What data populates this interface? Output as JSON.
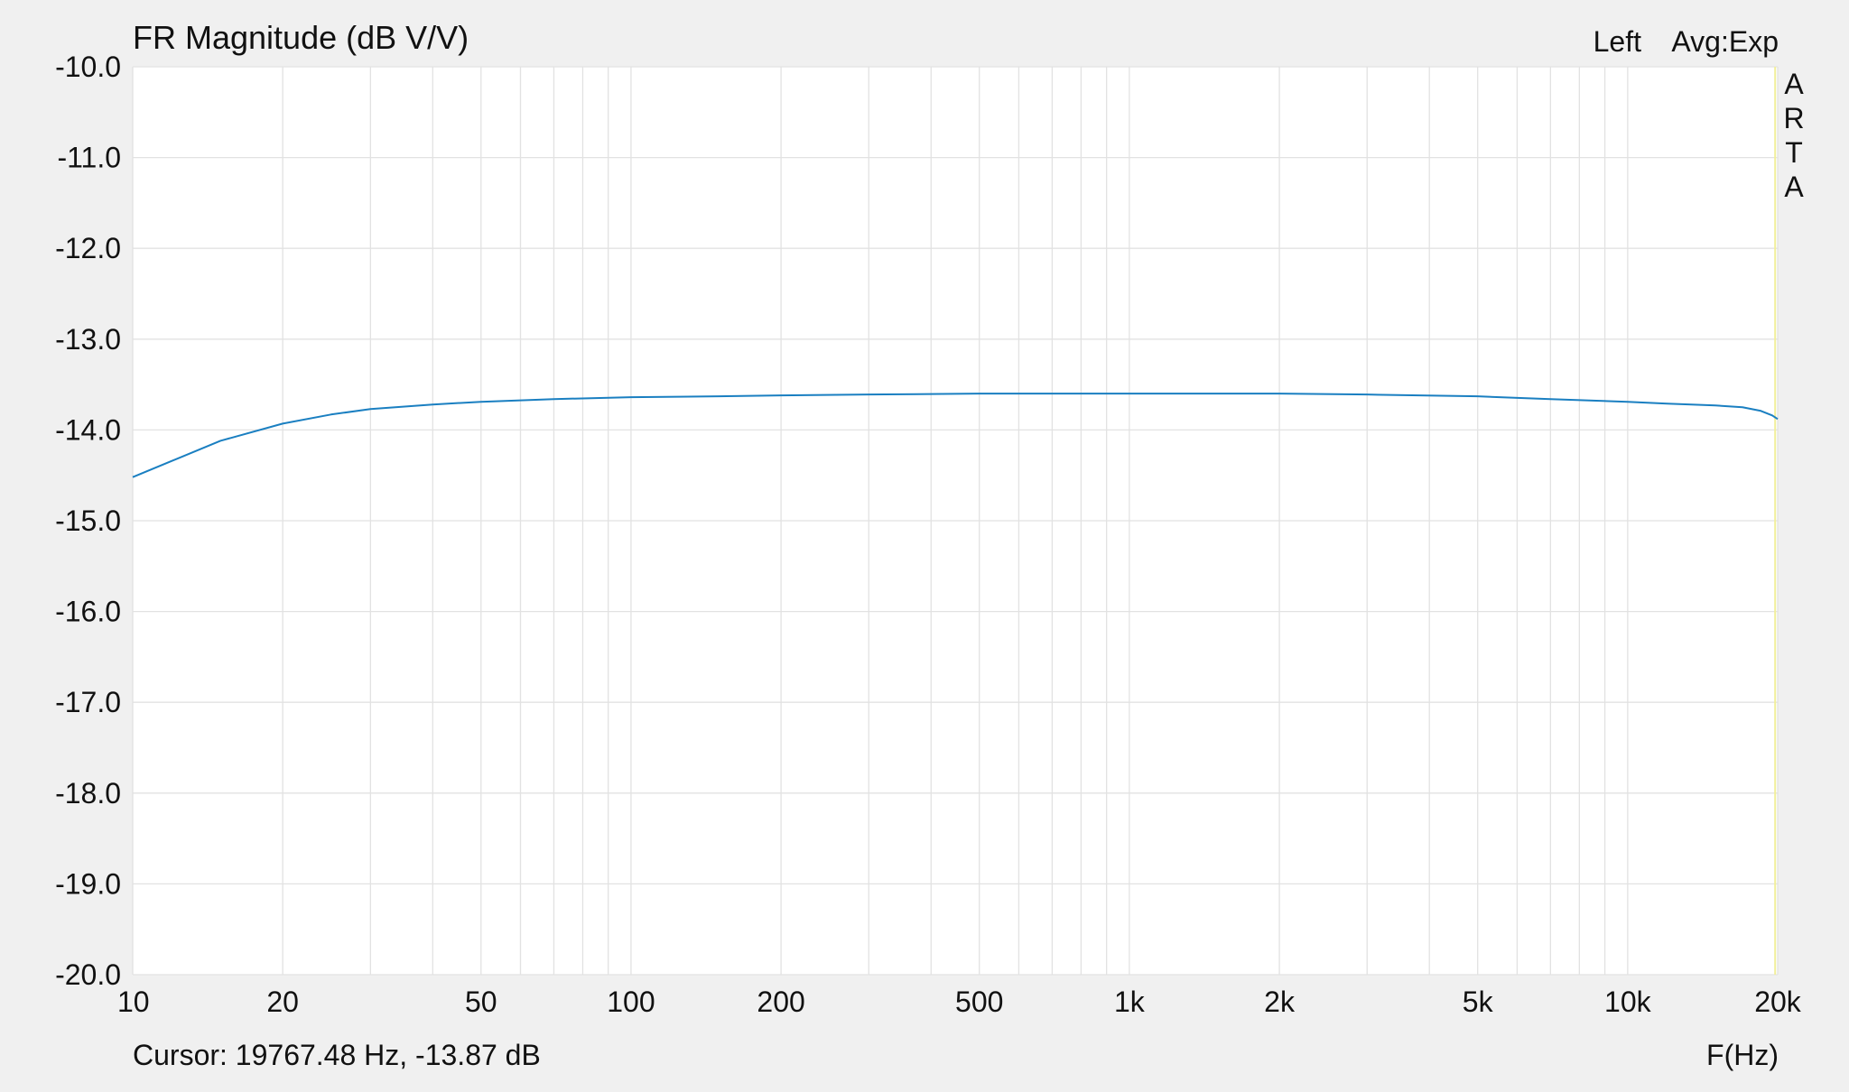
{
  "chart_data": {
    "type": "line",
    "title": "FR Magnitude (dB V/V)",
    "channel": "Left",
    "averaging": "Avg:Exp",
    "watermark": "ARTA",
    "xlabel": "F(Hz)",
    "ylabel": "",
    "x_scale": "log",
    "xlim": [
      10,
      20000
    ],
    "ylim": [
      -20.0,
      -10.0
    ],
    "grid": true,
    "x_tick_values": [
      10,
      20,
      50,
      100,
      200,
      500,
      1000,
      2000,
      5000,
      10000,
      20000
    ],
    "x_tick_labels": [
      "10",
      "20",
      "50",
      "100",
      "200",
      "500",
      "1k",
      "2k",
      "5k",
      "10k",
      "20k"
    ],
    "x_minor_grid": [
      30,
      40,
      60,
      70,
      80,
      90,
      300,
      400,
      600,
      700,
      800,
      900,
      3000,
      4000,
      6000,
      7000,
      8000,
      9000
    ],
    "y_tick_values": [
      -10,
      -11,
      -12,
      -13,
      -14,
      -15,
      -16,
      -17,
      -18,
      -19,
      -20
    ],
    "y_tick_labels": [
      "-10.0",
      "-11.0",
      "-12.0",
      "-13.0",
      "-14.0",
      "-15.0",
      "-16.0",
      "-17.0",
      "-18.0",
      "-19.0",
      "-20.0"
    ],
    "cursor_text": "Cursor: 19767.48 Hz, -13.87 dB",
    "cursor_frequency": 19767.48,
    "series": [
      {
        "color": "#1a7fc1",
        "x": [
          10,
          12,
          15,
          20,
          25,
          30,
          40,
          50,
          70,
          100,
          150,
          200,
          300,
          500,
          700,
          1000,
          2000,
          3000,
          5000,
          7000,
          10000,
          12000,
          15000,
          17000,
          18500,
          19500,
          20000
        ],
        "y": [
          -14.52,
          -14.34,
          -14.12,
          -13.93,
          -13.83,
          -13.77,
          -13.72,
          -13.69,
          -13.66,
          -13.64,
          -13.63,
          -13.62,
          -13.61,
          -13.6,
          -13.6,
          -13.6,
          -13.6,
          -13.61,
          -13.63,
          -13.66,
          -13.69,
          -13.71,
          -13.73,
          -13.75,
          -13.79,
          -13.84,
          -13.88
        ]
      }
    ],
    "colors": {
      "background": "#f0f0f0",
      "plot_background": "#ffffff",
      "grid": "#e2e2e2",
      "cursor_line": "#f2ef9a"
    }
  }
}
